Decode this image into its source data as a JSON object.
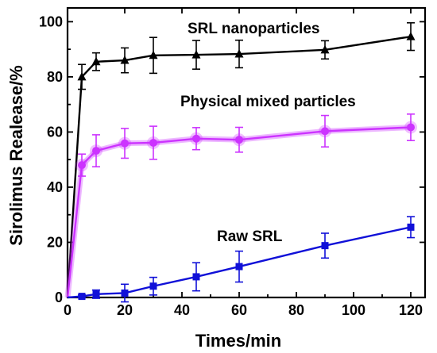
{
  "chart_data": {
    "type": "line",
    "xlabel": "Times/min",
    "ylabel": "Sirolimus Realease/%",
    "xlim": [
      0,
      125
    ],
    "ylim": [
      0,
      105
    ],
    "xticks": [
      0,
      20,
      40,
      60,
      80,
      100,
      120
    ],
    "yticks": [
      0,
      20,
      40,
      60,
      80,
      100
    ],
    "grid": false,
    "legend": "inline labels",
    "series": [
      {
        "name": "SRL nanoparticles",
        "color": "#000000",
        "marker": "triangle",
        "x": [
          0,
          5,
          10,
          20,
          30,
          45,
          60,
          90,
          120
        ],
        "y": [
          0,
          80,
          85.5,
          86,
          87.8,
          88,
          88.3,
          89.8,
          94.6
        ],
        "err": [
          0,
          4.5,
          3.2,
          4.5,
          6.5,
          5.2,
          5,
          3.3,
          5
        ]
      },
      {
        "name": "Physical mixed particles",
        "color": "#cc33ff",
        "marker": "circle",
        "x": [
          0,
          5,
          10,
          20,
          30,
          45,
          60,
          90,
          120
        ],
        "y": [
          0,
          48,
          53.2,
          55.9,
          56.1,
          57.6,
          57.2,
          60.3,
          61.7
        ],
        "err": [
          0,
          4,
          5.8,
          5.4,
          6,
          4,
          4.5,
          5.7,
          4.8
        ]
      },
      {
        "name": "Raw SRL",
        "color": "#1010d8",
        "marker": "square",
        "x": [
          0,
          5,
          10,
          20,
          30,
          45,
          60,
          90,
          120
        ],
        "y": [
          0,
          0.4,
          1.2,
          1.6,
          4.1,
          7.5,
          11.2,
          18.8,
          25.5
        ],
        "err": [
          0,
          0.5,
          1.5,
          3.2,
          3.2,
          5.1,
          5.6,
          4.5,
          3.8
        ]
      }
    ]
  }
}
